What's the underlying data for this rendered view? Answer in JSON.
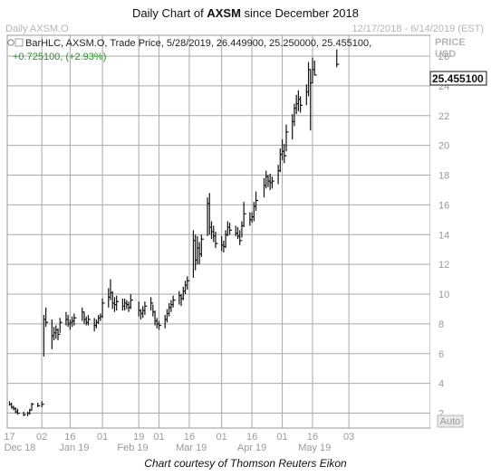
{
  "chart_data": {
    "type": "bar",
    "ohlc": true,
    "title_prefix": "Daily Chart of ",
    "title_bold": "AXSM",
    "title_suffix": " since December 2018",
    "symbol_label": "Daily AXSM.O",
    "date_range": "12/17/2018 - 6/14/2019 (EST)",
    "price_label": "PRICE",
    "currency_label": "USD",
    "info_line": "BarHLC, AXSM.O, Trade Price, 5/28/2019, 26.449900, 25.250000, 25.455100,",
    "change_line": "+0.725100, (+2.93%)",
    "last_price": "25.455100",
    "auto_label": "Auto",
    "caption": "Chart courtesy of Thomson Reuters Eikon",
    "ylim": [
      1,
      27.4
    ],
    "y_ticks": [
      2,
      4,
      6,
      8,
      10,
      12,
      14,
      16,
      18,
      20,
      22,
      24,
      26
    ],
    "grid": true,
    "day_ticks": [
      "17",
      "02",
      "16",
      "01",
      "19",
      "01",
      "16",
      "01",
      "16",
      "03"
    ],
    "month_labels": [
      "Dec 18",
      "Jan 19",
      "Feb 19",
      "Mar 19",
      "Apr 19",
      "May 19"
    ],
    "colors": {
      "bars": "#111111",
      "change": "#1f9a1f",
      "grid": "#a8a8a8",
      "price_box": "#ffffff"
    },
    "bars": [
      {
        "d": "2018-12-17",
        "h": 2.8,
        "l": 2.5,
        "c": 2.6
      },
      {
        "d": "2018-12-18",
        "h": 2.7,
        "l": 2.3,
        "c": 2.4
      },
      {
        "d": "2018-12-19",
        "h": 2.5,
        "l": 2.2,
        "c": 2.3
      },
      {
        "d": "2018-12-20",
        "h": 2.4,
        "l": 2.0,
        "c": 2.1
      },
      {
        "d": "2018-12-21",
        "h": 2.3,
        "l": 1.9,
        "c": 2.0
      },
      {
        "d": "2018-12-24",
        "h": 2.1,
        "l": 1.8,
        "c": 1.9
      },
      {
        "d": "2018-12-26",
        "h": 2.1,
        "l": 1.8,
        "c": 2.0
      },
      {
        "d": "2018-12-27",
        "h": 2.3,
        "l": 1.9,
        "c": 2.2
      },
      {
        "d": "2018-12-28",
        "h": 2.7,
        "l": 2.2,
        "c": 2.6
      },
      {
        "d": "2018-12-31",
        "h": 2.7,
        "l": 2.4,
        "c": 2.5
      },
      {
        "d": "2019-01-02",
        "h": 2.8,
        "l": 2.4,
        "c": 2.6
      },
      {
        "d": "2019-01-03",
        "h": 8.6,
        "l": 5.8,
        "c": 8.3
      },
      {
        "d": "2019-01-04",
        "h": 9.1,
        "l": 7.8,
        "c": 8.1
      },
      {
        "d": "2019-01-07",
        "h": 8.3,
        "l": 6.3,
        "c": 7.2
      },
      {
        "d": "2019-01-08",
        "h": 7.8,
        "l": 6.9,
        "c": 7.4
      },
      {
        "d": "2019-01-09",
        "h": 7.9,
        "l": 7.0,
        "c": 7.6
      },
      {
        "d": "2019-01-10",
        "h": 7.7,
        "l": 6.9,
        "c": 7.3
      },
      {
        "d": "2019-01-11",
        "h": 8.4,
        "l": 7.4,
        "c": 8.1
      },
      {
        "d": "2019-01-14",
        "h": 8.8,
        "l": 7.9,
        "c": 8.3
      },
      {
        "d": "2019-01-15",
        "h": 8.6,
        "l": 7.8,
        "c": 8.0
      },
      {
        "d": "2019-01-16",
        "h": 8.3,
        "l": 7.6,
        "c": 8.1
      },
      {
        "d": "2019-01-17",
        "h": 8.5,
        "l": 7.8,
        "c": 8.2
      },
      {
        "d": "2019-01-18",
        "h": 8.7,
        "l": 7.9,
        "c": 8.4
      },
      {
        "d": "2019-01-22",
        "h": 9.1,
        "l": 8.2,
        "c": 8.8
      },
      {
        "d": "2019-01-23",
        "h": 8.8,
        "l": 8.0,
        "c": 8.3
      },
      {
        "d": "2019-01-24",
        "h": 8.5,
        "l": 7.9,
        "c": 8.1
      },
      {
        "d": "2019-01-25",
        "h": 8.6,
        "l": 7.9,
        "c": 8.3
      },
      {
        "d": "2019-01-28",
        "h": 8.4,
        "l": 7.5,
        "c": 7.9
      },
      {
        "d": "2019-01-29",
        "h": 8.3,
        "l": 7.7,
        "c": 8.1
      },
      {
        "d": "2019-01-30",
        "h": 8.6,
        "l": 8.0,
        "c": 8.4
      },
      {
        "d": "2019-01-31",
        "h": 8.7,
        "l": 8.2,
        "c": 8.5
      },
      {
        "d": "2019-02-01",
        "h": 9.7,
        "l": 8.4,
        "c": 9.4
      },
      {
        "d": "2019-02-04",
        "h": 10.4,
        "l": 9.1,
        "c": 9.8
      },
      {
        "d": "2019-02-05",
        "h": 11.0,
        "l": 9.6,
        "c": 10.1
      },
      {
        "d": "2019-02-06",
        "h": 10.2,
        "l": 9.0,
        "c": 9.4
      },
      {
        "d": "2019-02-07",
        "h": 9.8,
        "l": 8.8,
        "c": 9.3
      },
      {
        "d": "2019-02-08",
        "h": 9.9,
        "l": 8.9,
        "c": 9.5
      },
      {
        "d": "2019-02-11",
        "h": 9.7,
        "l": 8.9,
        "c": 9.2
      },
      {
        "d": "2019-02-12",
        "h": 9.7,
        "l": 8.9,
        "c": 9.4
      },
      {
        "d": "2019-02-13",
        "h": 9.6,
        "l": 9.0,
        "c": 9.3
      },
      {
        "d": "2019-02-14",
        "h": 9.5,
        "l": 8.8,
        "c": 9.1
      },
      {
        "d": "2019-02-15",
        "h": 10.0,
        "l": 9.0,
        "c": 9.6
      },
      {
        "d": "2019-02-19",
        "h": 9.5,
        "l": 8.5,
        "c": 8.9
      },
      {
        "d": "2019-02-20",
        "h": 9.0,
        "l": 8.3,
        "c": 8.7
      },
      {
        "d": "2019-02-21",
        "h": 9.2,
        "l": 8.4,
        "c": 8.9
      },
      {
        "d": "2019-02-22",
        "h": 9.5,
        "l": 8.6,
        "c": 9.2
      },
      {
        "d": "2019-02-25",
        "h": 9.8,
        "l": 8.9,
        "c": 9.4
      },
      {
        "d": "2019-02-26",
        "h": 9.3,
        "l": 8.5,
        "c": 8.8
      },
      {
        "d": "2019-02-27",
        "h": 8.9,
        "l": 7.9,
        "c": 8.2
      },
      {
        "d": "2019-02-28",
        "h": 8.4,
        "l": 7.7,
        "c": 8.0
      },
      {
        "d": "2019-03-01",
        "h": 8.2,
        "l": 7.6,
        "c": 7.9
      },
      {
        "d": "2019-03-04",
        "h": 8.6,
        "l": 7.7,
        "c": 8.3
      },
      {
        "d": "2019-03-05",
        "h": 9.0,
        "l": 8.1,
        "c": 8.7
      },
      {
        "d": "2019-03-06",
        "h": 9.4,
        "l": 8.5,
        "c": 9.1
      },
      {
        "d": "2019-03-07",
        "h": 9.6,
        "l": 8.8,
        "c": 9.3
      },
      {
        "d": "2019-03-08",
        "h": 9.9,
        "l": 9.1,
        "c": 9.6
      },
      {
        "d": "2019-03-11",
        "h": 10.2,
        "l": 9.3,
        "c": 9.9
      },
      {
        "d": "2019-03-12",
        "h": 10.0,
        "l": 9.2,
        "c": 9.7
      },
      {
        "d": "2019-03-13",
        "h": 10.5,
        "l": 9.6,
        "c": 10.2
      },
      {
        "d": "2019-03-14",
        "h": 10.9,
        "l": 10.0,
        "c": 10.6
      },
      {
        "d": "2019-03-15",
        "h": 11.2,
        "l": 10.3,
        "c": 10.9
      },
      {
        "d": "2019-03-18",
        "h": 14.3,
        "l": 11.1,
        "c": 13.6
      },
      {
        "d": "2019-03-19",
        "h": 14.0,
        "l": 11.6,
        "c": 12.3
      },
      {
        "d": "2019-03-20",
        "h": 13.9,
        "l": 12.0,
        "c": 13.1
      },
      {
        "d": "2019-03-21",
        "h": 13.5,
        "l": 12.0,
        "c": 12.7
      },
      {
        "d": "2019-03-22",
        "h": 14.0,
        "l": 12.5,
        "c": 13.7
      },
      {
        "d": "2019-03-25",
        "h": 16.5,
        "l": 13.9,
        "c": 16.1
      },
      {
        "d": "2019-03-26",
        "h": 16.8,
        "l": 14.0,
        "c": 14.5
      },
      {
        "d": "2019-03-27",
        "h": 14.9,
        "l": 13.7,
        "c": 14.2
      },
      {
        "d": "2019-03-28",
        "h": 14.6,
        "l": 13.5,
        "c": 13.9
      },
      {
        "d": "2019-03-29",
        "h": 14.2,
        "l": 13.1,
        "c": 13.4
      },
      {
        "d": "2019-04-01",
        "h": 13.9,
        "l": 12.9,
        "c": 13.3
      },
      {
        "d": "2019-04-02",
        "h": 13.6,
        "l": 12.8,
        "c": 13.2
      },
      {
        "d": "2019-04-03",
        "h": 14.3,
        "l": 13.1,
        "c": 14.0
      },
      {
        "d": "2019-04-04",
        "h": 14.9,
        "l": 13.9,
        "c": 14.5
      },
      {
        "d": "2019-04-05",
        "h": 14.8,
        "l": 14.0,
        "c": 14.3
      },
      {
        "d": "2019-04-08",
        "h": 14.6,
        "l": 13.9,
        "c": 14.1
      },
      {
        "d": "2019-04-09",
        "h": 14.5,
        "l": 13.7,
        "c": 13.9
      },
      {
        "d": "2019-04-10",
        "h": 14.3,
        "l": 13.3,
        "c": 13.6
      },
      {
        "d": "2019-04-11",
        "h": 14.9,
        "l": 13.8,
        "c": 14.6
      },
      {
        "d": "2019-04-12",
        "h": 16.2,
        "l": 14.5,
        "c": 15.4
      },
      {
        "d": "2019-04-15",
        "h": 15.5,
        "l": 14.6,
        "c": 15.0
      },
      {
        "d": "2019-04-16",
        "h": 15.5,
        "l": 14.8,
        "c": 15.2
      },
      {
        "d": "2019-04-17",
        "h": 16.2,
        "l": 14.9,
        "c": 15.9
      },
      {
        "d": "2019-04-18",
        "h": 16.9,
        "l": 15.6,
        "c": 16.3
      },
      {
        "d": "2019-04-22",
        "h": 17.8,
        "l": 16.5,
        "c": 17.3
      },
      {
        "d": "2019-04-23",
        "h": 18.3,
        "l": 17.1,
        "c": 17.9
      },
      {
        "d": "2019-04-24",
        "h": 18.0,
        "l": 17.2,
        "c": 17.6
      },
      {
        "d": "2019-04-25",
        "h": 18.1,
        "l": 17.0,
        "c": 17.5
      },
      {
        "d": "2019-04-26",
        "h": 17.9,
        "l": 17.1,
        "c": 17.6
      },
      {
        "d": "2019-04-29",
        "h": 18.7,
        "l": 17.4,
        "c": 18.3
      },
      {
        "d": "2019-04-30",
        "h": 19.8,
        "l": 18.2,
        "c": 19.4
      },
      {
        "d": "2019-05-01",
        "h": 20.4,
        "l": 19.0,
        "c": 19.6
      },
      {
        "d": "2019-05-02",
        "h": 20.1,
        "l": 18.8,
        "c": 19.3
      },
      {
        "d": "2019-05-03",
        "h": 21.4,
        "l": 19.6,
        "c": 20.9
      },
      {
        "d": "2019-05-06",
        "h": 22.1,
        "l": 20.4,
        "c": 21.6
      },
      {
        "d": "2019-05-07",
        "h": 22.8,
        "l": 21.3,
        "c": 22.5
      },
      {
        "d": "2019-05-08",
        "h": 23.4,
        "l": 22.1,
        "c": 22.8
      },
      {
        "d": "2019-05-09",
        "h": 23.7,
        "l": 22.3,
        "c": 23.1
      },
      {
        "d": "2019-05-10",
        "h": 23.3,
        "l": 22.2,
        "c": 22.7
      },
      {
        "d": "2019-05-13",
        "h": 24.1,
        "l": 22.7,
        "c": 23.6
      },
      {
        "d": "2019-05-14",
        "h": 25.6,
        "l": 23.3,
        "c": 25.1
      },
      {
        "d": "2019-05-15",
        "h": 25.1,
        "l": 21.0,
        "c": 24.2
      },
      {
        "d": "2019-05-16",
        "h": 25.9,
        "l": 24.2,
        "c": 25.1
      },
      {
        "d": "2019-05-17",
        "h": 25.7,
        "l": 24.7,
        "c": 24.73
      },
      {
        "d": "2019-05-28",
        "h": 26.4499,
        "l": 25.25,
        "c": 25.4551
      }
    ]
  }
}
